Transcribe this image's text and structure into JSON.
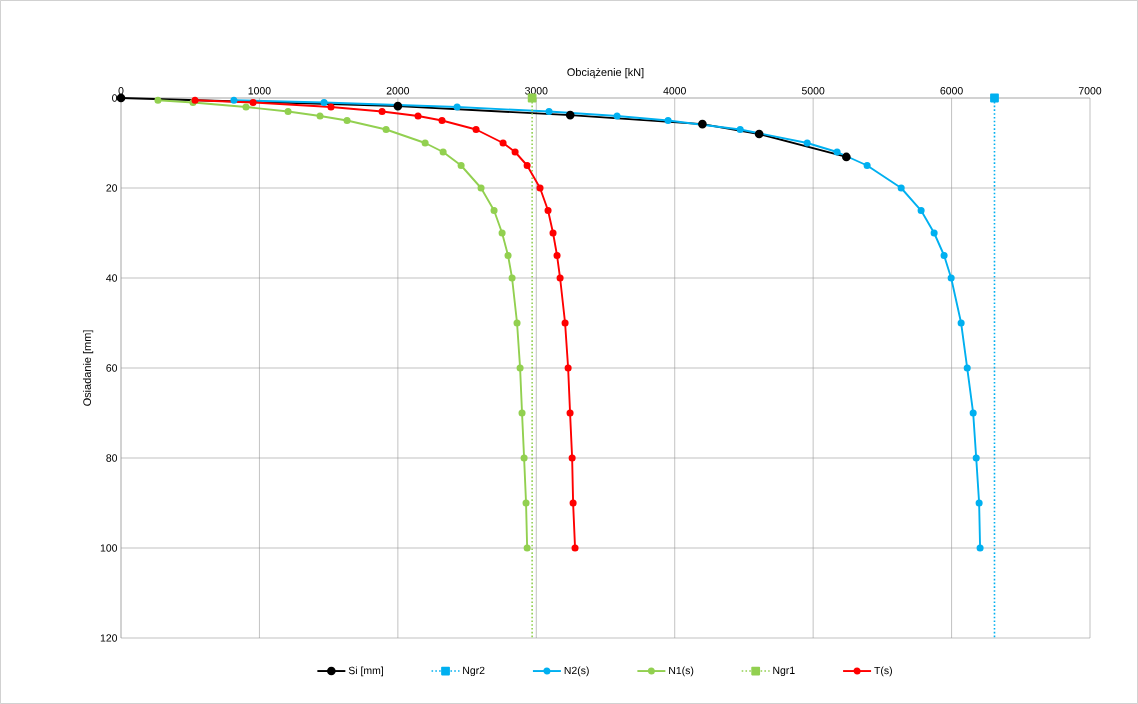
{
  "chart_data": {
    "type": "line",
    "xlabel": "Obciążenie [kN]",
    "ylabel": "Osiadanie [mm]",
    "xlim": [
      0,
      7000
    ],
    "xticks": [
      0,
      1000,
      2000,
      3000,
      4000,
      5000,
      6000,
      7000
    ],
    "ylim": [
      120,
      0
    ],
    "yticks": [
      0,
      20,
      40,
      60,
      80,
      100,
      120
    ],
    "grid": true,
    "legend": "bottom",
    "series": [
      {
        "name": "Si [mm]",
        "color": "#000000",
        "marker": "circle",
        "line_style": "solid",
        "x": [
          0,
          2000,
          3245,
          4200,
          4610,
          5240
        ],
        "values": [
          0,
          1.8,
          3.8,
          5.8,
          8,
          13.1
        ]
      },
      {
        "name": "Ngr2",
        "color": "#00b0f0",
        "marker": "square",
        "line_style": "dotted",
        "x": [
          6310,
          6310
        ],
        "values": [
          0,
          120
        ]
      },
      {
        "name": "N2(s)",
        "color": "#00b0f0",
        "marker": "circle",
        "line_style": "solid",
        "x": [
          816,
          1467,
          2428,
          3092,
          3584,
          3952,
          4473,
          4957,
          5173,
          5390,
          5636,
          5780,
          5874,
          5946,
          5997,
          6069,
          6113,
          6156,
          6178,
          6199,
          6206
        ],
        "values": [
          0.5,
          1,
          2,
          3,
          4,
          5,
          7,
          10,
          12,
          15,
          20,
          25,
          30,
          35,
          40,
          50,
          60,
          70,
          80,
          90,
          100
        ]
      },
      {
        "name": "N1(s)",
        "color": "#92d050",
        "marker": "circle",
        "line_style": "solid",
        "x": [
          267,
          520,
          903,
          1207,
          1438,
          1633,
          1915,
          2197,
          2327,
          2457,
          2601,
          2695,
          2753,
          2796,
          2825,
          2861,
          2883,
          2897,
          2912,
          2926,
          2934
        ],
        "values": [
          0.5,
          1,
          2,
          3,
          4,
          5,
          7,
          10,
          12,
          15,
          20,
          25,
          30,
          35,
          40,
          50,
          60,
          70,
          80,
          90,
          100
        ]
      },
      {
        "name": "Ngr1",
        "color": "#92d050",
        "marker": "square",
        "line_style": "dotted",
        "x": [
          2970,
          2970
        ],
        "values": [
          0,
          120
        ]
      },
      {
        "name": "T(s)",
        "color": "#ff0000",
        "marker": "circle",
        "line_style": "solid",
        "x": [
          535,
          954,
          1517,
          1886,
          2146,
          2319,
          2565,
          2760,
          2847,
          2934,
          3027,
          3085,
          3121,
          3150,
          3172,
          3208,
          3230,
          3244,
          3259,
          3266,
          3280
        ],
        "values": [
          0.5,
          1,
          2,
          3,
          4,
          5,
          7,
          10,
          12,
          15,
          20,
          25,
          30,
          35,
          40,
          50,
          60,
          70,
          80,
          90,
          100
        ]
      }
    ]
  }
}
